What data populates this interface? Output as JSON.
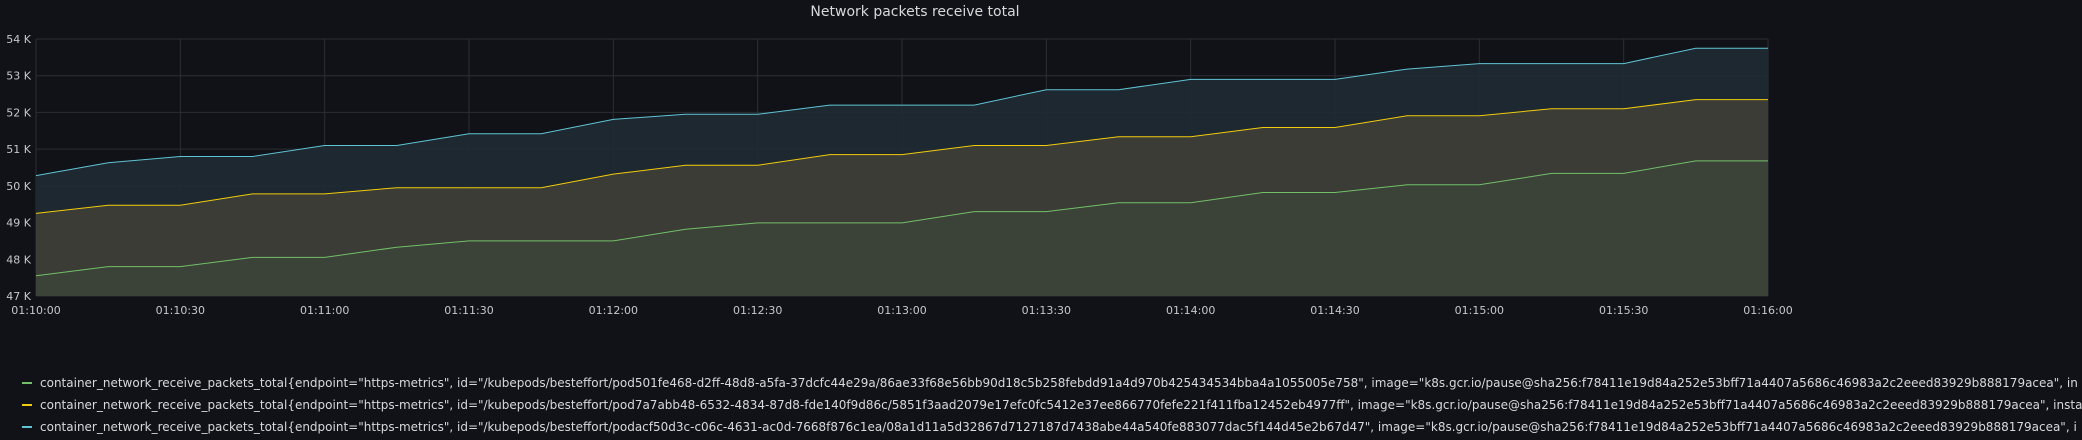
{
  "panel": {
    "title": "Network packets receive total"
  },
  "colors": {
    "background": "#111217",
    "grid": "#2c2e33",
    "series": [
      "#73bf69",
      "#f2cc0c",
      "#5fc4d4"
    ],
    "fills": [
      "#3c4438",
      "#3e3e36",
      "#1f2b34"
    ]
  },
  "chart_data": {
    "type": "area",
    "title": "Network packets receive total",
    "xlabel": "",
    "ylabel": "",
    "ylim": [
      47000,
      54000
    ],
    "yticks": [
      47000,
      48000,
      49000,
      50000,
      51000,
      52000,
      53000,
      54000
    ],
    "ytick_labels": [
      "47 K",
      "48 K",
      "49 K",
      "50 K",
      "51 K",
      "52 K",
      "53 K",
      "54 K"
    ],
    "xlim": [
      0,
      360
    ],
    "xticks": [
      0,
      30,
      60,
      90,
      120,
      150,
      180,
      210,
      240,
      270,
      300,
      330,
      360
    ],
    "xtick_labels": [
      "01:10:00",
      "01:10:30",
      "01:11:00",
      "01:11:30",
      "01:12:00",
      "01:12:30",
      "01:13:00",
      "01:13:30",
      "01:14:00",
      "01:14:30",
      "01:15:00",
      "01:15:30",
      "01:16:00"
    ],
    "grid": true,
    "legend_position": "bottom",
    "x": [
      0,
      15,
      30,
      45,
      60,
      75,
      90,
      105,
      120,
      135,
      150,
      165,
      180,
      195,
      210,
      225,
      240,
      255,
      270,
      285,
      300,
      315,
      330,
      345,
      360
    ],
    "series": [
      {
        "name": "container_network_receive_packets_total{endpoint=\"https-metrics\", id=\"/kubepods/besteffort/pod501fe468-d2ff-48d8-a5fa-37dcfc44e29a/86ae33f68e56bb90d18c5b258febdd91a4d970b425434534bba4a1055005e758\", image=\"k8s.gcr.io/pause@sha256:f78411e19d84a252e53bff71a4407a5686c46983a2c2eeed83929b888179acea\", in",
        "values": [
          47550,
          47800,
          47800,
          48050,
          48050,
          48330,
          48500,
          48500,
          48500,
          48820,
          48990,
          48990,
          48990,
          49300,
          49300,
          49540,
          49540,
          49820,
          49820,
          50030,
          50030,
          50340,
          50340,
          50680,
          50680
        ]
      },
      {
        "name": "container_network_receive_packets_total{endpoint=\"https-metrics\", id=\"/kubepods/besteffort/pod7a7abb48-6532-4834-87d8-fde140f9d86c/5851f3aad2079e17efc0fc5412e37ee866770fefe221f411fba12452eb4977ff\", image=\"k8s.gcr.io/pause@sha256:f78411e19d84a252e53bff71a4407a5686c46983a2c2eeed83929b888179acea\", insta",
        "values": [
          49250,
          49470,
          49470,
          49780,
          49780,
          49950,
          49950,
          49950,
          50320,
          50560,
          50560,
          50850,
          50850,
          51100,
          51100,
          51340,
          51340,
          51590,
          51590,
          51910,
          51910,
          52100,
          52100,
          52350,
          52350
        ]
      },
      {
        "name": "container_network_receive_packets_total{endpoint=\"https-metrics\", id=\"/kubepods/besteffort/podacf50d3c-c06c-4631-ac0d-7668f876c1ea/08a1d11a5d32867d7127187d7438abe44a540fe883077dac5f144d45e2b67d47\", image=\"k8s.gcr.io/pause@sha256:f78411e19d84a252e53bff71a4407a5686c46983a2c2eeed83929b888179acea\", i",
        "values": [
          50280,
          50630,
          50800,
          50800,
          51100,
          51100,
          51420,
          51420,
          51810,
          51950,
          51950,
          52200,
          52200,
          52200,
          52620,
          52620,
          52900,
          52900,
          52900,
          53180,
          53330,
          53330,
          53330,
          53750,
          53750
        ]
      }
    ]
  }
}
